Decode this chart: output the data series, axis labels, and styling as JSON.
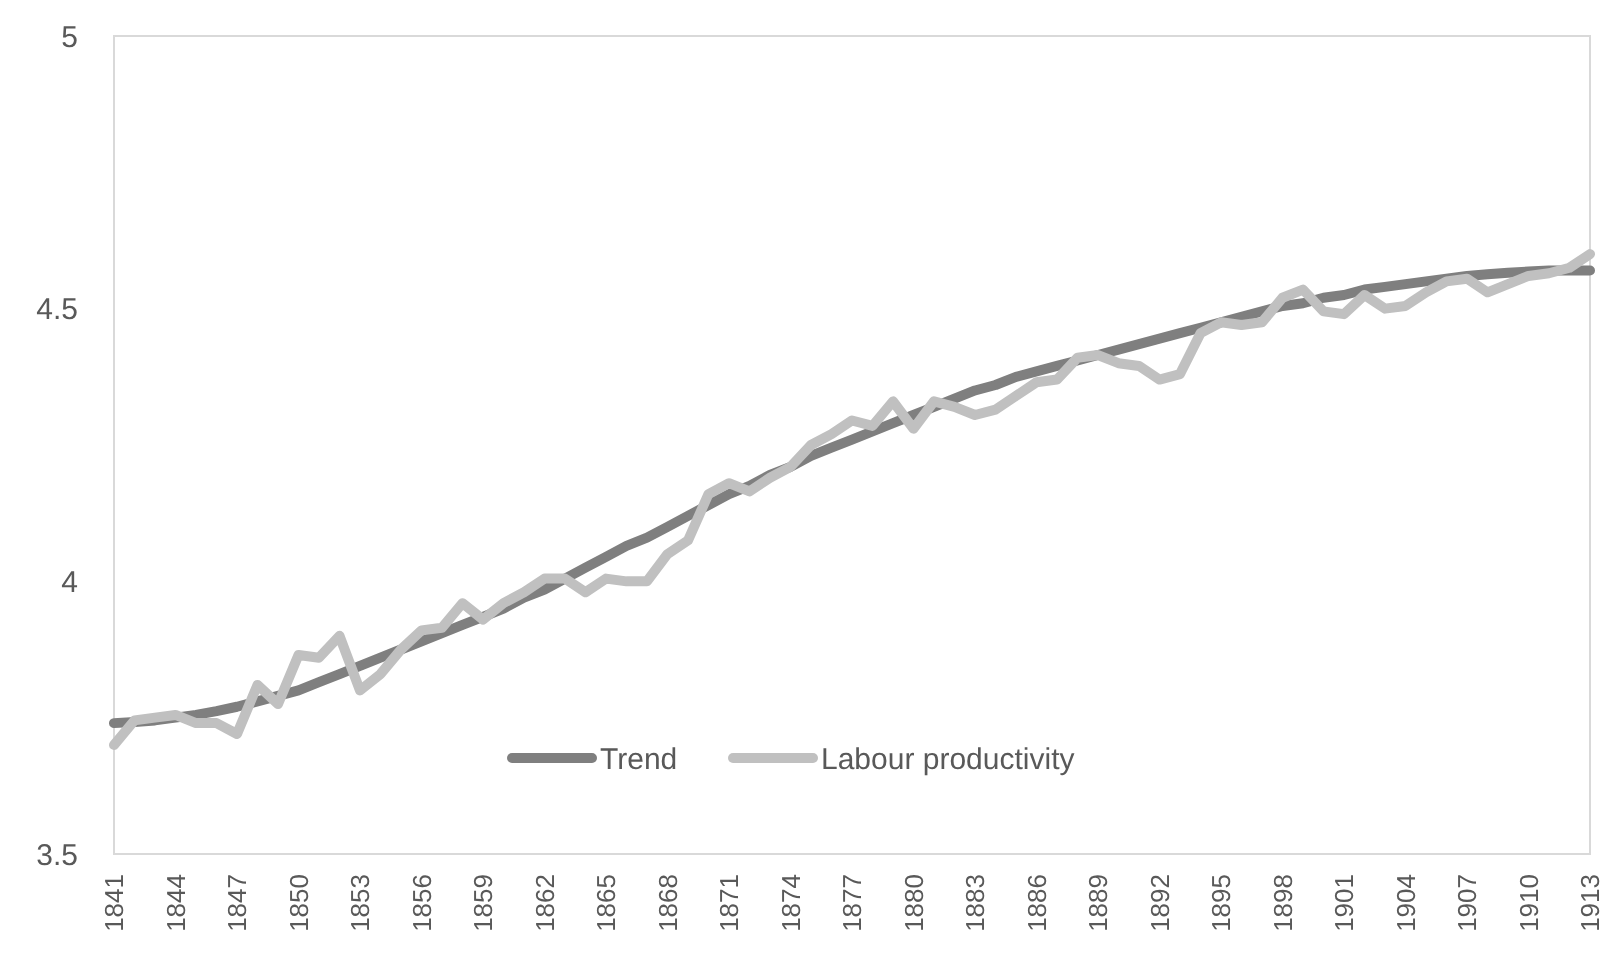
{
  "chart_data": {
    "type": "line",
    "categories": [
      "1841",
      null,
      null,
      "1844",
      null,
      null,
      "1847",
      null,
      null,
      "1850",
      null,
      null,
      "1853",
      null,
      null,
      "1856",
      null,
      null,
      "1859",
      null,
      null,
      "1862",
      null,
      null,
      "1865",
      null,
      null,
      "1868",
      null,
      null,
      "1871",
      null,
      null,
      "1874",
      null,
      null,
      "1877",
      null,
      null,
      "1880",
      null,
      null,
      "1883",
      null,
      null,
      "1886",
      null,
      null,
      "1889",
      null,
      null,
      "1892",
      null,
      null,
      "1895",
      null,
      null,
      "1898",
      null,
      null,
      "1901",
      null,
      null,
      "1904",
      null,
      null,
      "1907",
      null,
      null,
      "1910",
      null,
      null,
      "1913"
    ],
    "series": [
      {
        "name": "Trend",
        "color": "#7f7f7f",
        "values": [
          3.74,
          3.742,
          3.745,
          3.75,
          3.755,
          3.762,
          3.77,
          3.78,
          3.79,
          3.8,
          3.815,
          3.83,
          3.845,
          3.86,
          3.875,
          3.89,
          3.905,
          3.92,
          3.935,
          3.95,
          3.97,
          3.985,
          4.005,
          4.025,
          4.045,
          4.065,
          4.08,
          4.1,
          4.12,
          4.14,
          4.16,
          4.175,
          4.195,
          4.21,
          4.23,
          4.245,
          4.26,
          4.275,
          4.29,
          4.305,
          4.32,
          4.335,
          4.35,
          4.36,
          4.375,
          4.385,
          4.395,
          4.405,
          4.415,
          4.425,
          4.435,
          4.445,
          4.455,
          4.465,
          4.475,
          4.485,
          4.495,
          4.505,
          4.51,
          4.52,
          4.525,
          4.535,
          4.54,
          4.545,
          4.55,
          4.555,
          4.56,
          4.563,
          4.566,
          4.568,
          4.57,
          4.57,
          4.57
        ]
      },
      {
        "name": "Labour productivity",
        "color": "#c0c0c0",
        "values": [
          3.7,
          3.745,
          3.75,
          3.755,
          3.74,
          3.74,
          3.72,
          3.81,
          3.775,
          3.865,
          3.86,
          3.9,
          3.8,
          3.83,
          3.875,
          3.91,
          3.915,
          3.96,
          3.93,
          3.96,
          3.98,
          4.005,
          4.005,
          3.98,
          4.005,
          4,
          4,
          4.05,
          4.075,
          4.16,
          4.18,
          4.165,
          4.19,
          4.21,
          4.25,
          4.27,
          4.295,
          4.285,
          4.33,
          4.28,
          4.33,
          4.32,
          4.305,
          4.315,
          4.34,
          4.365,
          4.37,
          4.41,
          4.415,
          4.4,
          4.395,
          4.37,
          4.38,
          4.455,
          4.475,
          4.47,
          4.475,
          4.52,
          4.535,
          4.495,
          4.49,
          4.525,
          4.5,
          4.505,
          4.53,
          4.55,
          4.555,
          4.53,
          4.545,
          4.56,
          4.565,
          4.575,
          4.6
        ]
      }
    ],
    "ylim": [
      3.5,
      5
    ],
    "yticks": [
      3.5,
      4,
      4.5,
      5
    ],
    "legend": "bottom",
    "grid": false,
    "line_style": "solid",
    "marker": "none"
  }
}
